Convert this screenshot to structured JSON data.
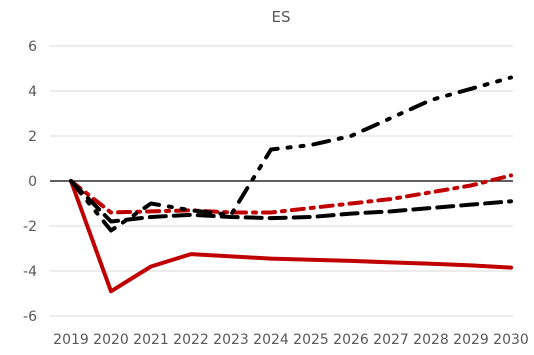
{
  "chart_data": {
    "type": "line",
    "title": "ES",
    "xlabel": "",
    "ylabel": "",
    "categories": [
      "2019",
      "2020",
      "2021",
      "2022",
      "2023",
      "2024",
      "2025",
      "2026",
      "2027",
      "2028",
      "2029",
      "2030"
    ],
    "yticks": [
      6,
      4,
      2,
      0,
      -2,
      -4,
      -6
    ],
    "ylim": [
      -6,
      6
    ],
    "grid": true,
    "legend": "none",
    "series": [
      {
        "style": "solid",
        "color": "#c00000",
        "values": [
          0,
          -4.9,
          -3.8,
          -3.25,
          -3.35,
          -3.45,
          -3.5,
          -3.55,
          -3.62,
          -3.68,
          -3.75,
          -3.85
        ]
      },
      {
        "style": "dash-dot",
        "color": "#c00000",
        "values": [
          0,
          -1.4,
          -1.35,
          -1.3,
          -1.4,
          -1.4,
          -1.2,
          -1.0,
          -0.8,
          -0.5,
          -0.2,
          0.25
        ]
      },
      {
        "style": "long-dash",
        "color": "#000000",
        "values": [
          0,
          -1.8,
          -1.6,
          -1.5,
          -1.6,
          -1.65,
          -1.6,
          -1.45,
          -1.35,
          -1.2,
          -1.05,
          -0.9
        ]
      },
      {
        "style": "dash-dot-dot",
        "color": "#000000",
        "values": [
          0,
          -2.2,
          -1.0,
          -1.3,
          -1.5,
          1.4,
          1.6,
          2.0,
          2.8,
          3.6,
          4.1,
          4.6
        ]
      }
    ]
  }
}
